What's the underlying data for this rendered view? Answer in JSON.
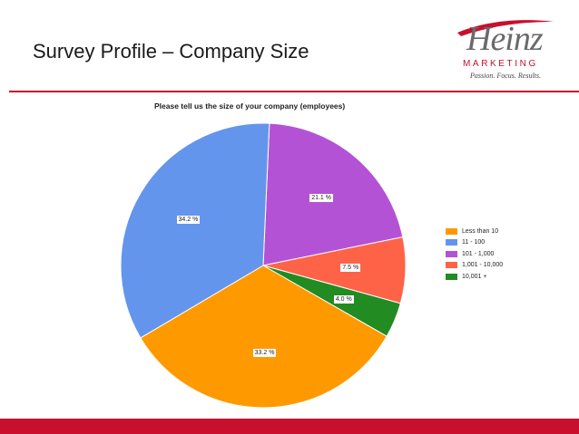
{
  "slide": {
    "title": "Survey Profile – Company Size"
  },
  "logo": {
    "wordmark": "Heinz",
    "subtitle": "MARKETING",
    "tagline": "Passion. Focus. Results.",
    "accent_color": "#c8102e"
  },
  "chart_data": {
    "type": "pie",
    "title": "Please tell us the size of your company (employees)",
    "legend_position": "right",
    "slices": [
      {
        "label": "Less than 10",
        "value": 33.2,
        "value_label": "33.2 %",
        "color": "#ff9900"
      },
      {
        "label": "11 - 100",
        "value": 34.2,
        "value_label": "34.2 %",
        "color": "#6495ed"
      },
      {
        "label": "101 - 1,000",
        "value": 21.1,
        "value_label": "21.1 %",
        "color": "#b452d6"
      },
      {
        "label": "1,001 - 10,000",
        "value": 7.5,
        "value_label": "7.5 %",
        "color": "#ff6347"
      },
      {
        "label": "10,001 +",
        "value": 4.0,
        "value_label": "4.0 %",
        "color": "#228b22"
      }
    ]
  }
}
